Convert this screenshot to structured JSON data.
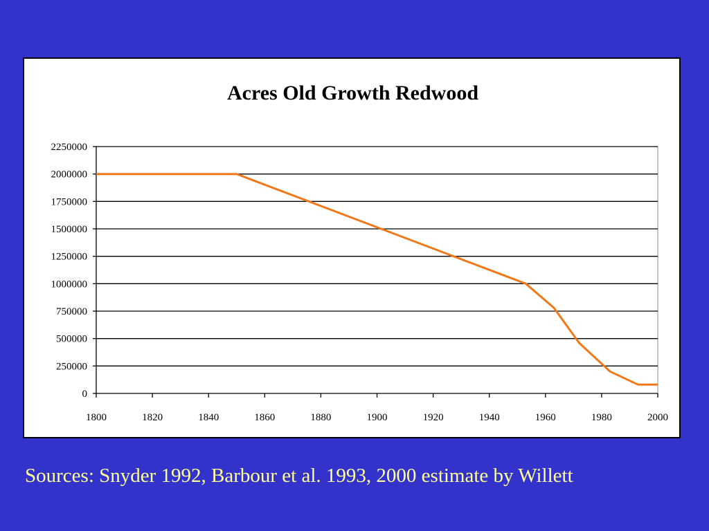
{
  "colors": {
    "background": "#3333cc",
    "panel": "#ffffff",
    "line": "#f07818",
    "gridline": "#000000",
    "footnote": "#ffff99"
  },
  "chart_data": {
    "type": "line",
    "title": "Acres Old Growth Redwood",
    "xlabel": "",
    "ylabel": "",
    "xlim": [
      1800,
      2000
    ],
    "ylim": [
      0,
      2250000
    ],
    "x_ticks": [
      1800,
      1820,
      1840,
      1860,
      1880,
      1900,
      1920,
      1940,
      1960,
      1980,
      2000
    ],
    "y_ticks": [
      0,
      250000,
      500000,
      750000,
      1000000,
      1250000,
      1500000,
      1750000,
      2000000,
      2250000
    ],
    "grid": true,
    "legend": "none",
    "series": [
      {
        "x": [
          1800,
          1850,
          1953,
          1963,
          1972,
          1983,
          1993,
          2000
        ],
        "y": [
          2000000,
          2000000,
          1000000,
          780000,
          460000,
          200000,
          80000,
          80000
        ]
      }
    ]
  },
  "footnote": "Sources:  Snyder 1992, Barbour et al. 1993, 2000 estimate by Willett"
}
